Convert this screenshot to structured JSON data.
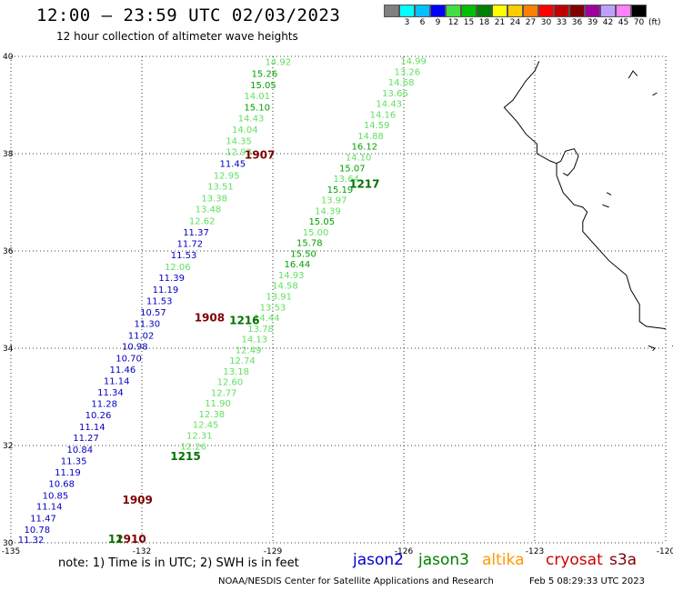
{
  "header": {
    "title": "12:00 – 23:59 UTC 02/03/2023",
    "subtitle": "12 hour collection of altimeter wave heights"
  },
  "colorbar": {
    "colors": [
      "#808080",
      "#00ffff",
      "#00c0ff",
      "#0000ff",
      "#40e040",
      "#00c000",
      "#008000",
      "#ffff00",
      "#ffcc00",
      "#ff8000",
      "#ff0000",
      "#c00000",
      "#800000",
      "#a000a0",
      "#c0a0ff",
      "#ff80ff",
      "#000000"
    ],
    "labels": [
      "",
      "3",
      "6",
      "9",
      "12",
      "15",
      "18",
      "21",
      "24",
      "27",
      "30",
      "33",
      "36",
      "39",
      "42",
      "45",
      "70"
    ],
    "unit": "(ft)"
  },
  "axes": {
    "lat_ticks": [
      "40",
      "38",
      "36",
      "34",
      "32",
      "30"
    ],
    "lon_ticks": [
      "-135",
      "-132",
      "-129",
      "-126",
      "-123",
      "-120"
    ]
  },
  "map": {
    "lon_range": [
      -135,
      -120
    ],
    "lat_range": [
      30,
      40
    ],
    "coastline": [
      [
        -122.9,
        39.9
      ],
      [
        -123.0,
        39.7
      ],
      [
        -123.2,
        39.5
      ],
      [
        -123.5,
        39.1
      ],
      [
        -123.7,
        38.95
      ],
      [
        -123.4,
        38.65
      ],
      [
        -123.2,
        38.4
      ],
      [
        -122.95,
        38.2
      ],
      [
        -122.95,
        38.0
      ],
      [
        -122.65,
        37.85
      ],
      [
        -122.5,
        37.8
      ],
      [
        -122.5,
        37.55
      ],
      [
        -122.35,
        37.2
      ],
      [
        -122.1,
        36.95
      ],
      [
        -121.9,
        36.9
      ],
      [
        -121.8,
        36.8
      ],
      [
        -121.9,
        36.6
      ],
      [
        -121.9,
        36.4
      ],
      [
        -121.6,
        36.1
      ],
      [
        -121.3,
        35.8
      ],
      [
        -120.9,
        35.5
      ],
      [
        -120.8,
        35.2
      ],
      [
        -120.6,
        34.9
      ],
      [
        -120.6,
        34.55
      ],
      [
        -120.45,
        34.45
      ],
      [
        -120.0,
        34.4
      ]
    ],
    "bay": [
      [
        -122.5,
        37.8
      ],
      [
        -122.4,
        37.85
      ],
      [
        -122.3,
        38.05
      ],
      [
        -122.1,
        38.1
      ],
      [
        -122.0,
        37.95
      ],
      [
        -122.1,
        37.7
      ],
      [
        -122.25,
        37.55
      ],
      [
        -122.35,
        37.6
      ]
    ],
    "islands": [
      [
        [
          -120.4,
          34.05
        ],
        [
          -120.25,
          34.0
        ],
        [
          -120.3,
          33.95
        ]
      ],
      [
        [
          -119.85,
          34.05
        ],
        [
          -119.55,
          34.0
        ],
        [
          -119.6,
          33.95
        ]
      ],
      [
        [
          -119.45,
          33.3
        ],
        [
          -119.4,
          33.2
        ]
      ],
      [
        [
          -120.85,
          39.55
        ],
        [
          -120.75,
          39.7
        ],
        [
          -120.65,
          39.6
        ]
      ],
      [
        [
          -120.3,
          39.2
        ],
        [
          -120.2,
          39.25
        ]
      ],
      [
        [
          -121.35,
          37.2
        ],
        [
          -121.25,
          37.15
        ]
      ],
      [
        [
          -121.45,
          36.95
        ],
        [
          -121.3,
          36.9
        ]
      ]
    ]
  },
  "tracks": [
    {
      "passes": [
        {
          "lon": -128.88,
          "lat": 39.82,
          "value": "14.92",
          "color": "#60e060"
        },
        {
          "lon": -129.19,
          "lat": 39.58,
          "value": "15.26",
          "color": "#00a000"
        },
        {
          "lon": -129.22,
          "lat": 39.35,
          "value": "15.05",
          "color": "#00a000"
        },
        {
          "lon": -129.36,
          "lat": 39.12,
          "value": "14.01",
          "color": "#60e060"
        },
        {
          "lon": -129.36,
          "lat": 38.89,
          "value": "15.10",
          "color": "#00a000"
        },
        {
          "lon": -129.5,
          "lat": 38.66,
          "value": "14.43",
          "color": "#60e060"
        },
        {
          "lon": -129.64,
          "lat": 38.43,
          "value": "14.04",
          "color": "#60e060"
        },
        {
          "lon": -129.78,
          "lat": 38.2,
          "value": "14.35",
          "color": "#60e060"
        },
        {
          "lon": -129.78,
          "lat": 37.97,
          "value": "12.93",
          "color": "#60e060"
        },
        {
          "lon": -129.92,
          "lat": 37.73,
          "value": "11.45",
          "color": "#0000c0"
        },
        {
          "lon": -130.06,
          "lat": 37.49,
          "value": "12.95",
          "color": "#60e060"
        },
        {
          "lon": -130.2,
          "lat": 37.26,
          "value": "13.51",
          "color": "#60e060"
        },
        {
          "lon": -130.34,
          "lat": 37.02,
          "value": "13.38",
          "color": "#60e060"
        },
        {
          "lon": -130.48,
          "lat": 36.79,
          "value": "13.48",
          "color": "#60e060"
        },
        {
          "lon": -130.62,
          "lat": 36.55,
          "value": "12.62",
          "color": "#60e060"
        },
        {
          "lon": -130.76,
          "lat": 36.32,
          "value": "11.37",
          "color": "#0000c0"
        },
        {
          "lon": -130.9,
          "lat": 36.08,
          "value": "11.72",
          "color": "#0000c0"
        },
        {
          "lon": -131.04,
          "lat": 35.85,
          "value": "11.53",
          "color": "#0000c0"
        },
        {
          "lon": -131.18,
          "lat": 35.61,
          "value": "12.06",
          "color": "#60e060"
        },
        {
          "lon": -131.32,
          "lat": 35.38,
          "value": "11.39",
          "color": "#0000c0"
        },
        {
          "lon": -131.46,
          "lat": 35.14,
          "value": "11.19",
          "color": "#0000c0"
        },
        {
          "lon": -131.6,
          "lat": 34.91,
          "value": "11.53",
          "color": "#0000c0"
        },
        {
          "lon": -131.74,
          "lat": 34.67,
          "value": "10.57",
          "color": "#0000c0"
        },
        {
          "lon": -131.88,
          "lat": 34.44,
          "value": "11.30",
          "color": "#0000c0"
        },
        {
          "lon": -132.02,
          "lat": 34.2,
          "value": "11.02",
          "color": "#0000c0"
        },
        {
          "lon": -132.16,
          "lat": 33.97,
          "value": "10.98",
          "color": "#0000c0"
        },
        {
          "lon": -132.3,
          "lat": 33.73,
          "value": "10.70",
          "color": "#0000c0"
        },
        {
          "lon": -132.44,
          "lat": 33.5,
          "value": "11.46",
          "color": "#0000c0"
        },
        {
          "lon": -132.58,
          "lat": 33.26,
          "value": "11.14",
          "color": "#0000c0"
        },
        {
          "lon": -132.72,
          "lat": 33.03,
          "value": "11.34",
          "color": "#0000c0"
        },
        {
          "lon": -132.86,
          "lat": 32.79,
          "value": "11.28",
          "color": "#0000c0"
        },
        {
          "lon": -133.0,
          "lat": 32.56,
          "value": "10.26",
          "color": "#0000c0"
        },
        {
          "lon": -133.14,
          "lat": 32.32,
          "value": "11.14",
          "color": "#0000c0"
        },
        {
          "lon": -133.28,
          "lat": 32.09,
          "value": "11.27",
          "color": "#0000c0"
        },
        {
          "lon": -133.42,
          "lat": 31.85,
          "value": "10.84",
          "color": "#0000c0"
        },
        {
          "lon": -133.56,
          "lat": 31.62,
          "value": "11.35",
          "color": "#0000c0"
        },
        {
          "lon": -133.7,
          "lat": 31.38,
          "value": "11.19",
          "color": "#0000c0"
        },
        {
          "lon": -133.84,
          "lat": 31.15,
          "value": "10.68",
          "color": "#0000c0"
        },
        {
          "lon": -133.98,
          "lat": 30.91,
          "value": "10.85",
          "color": "#0000c0"
        },
        {
          "lon": -134.12,
          "lat": 30.68,
          "value": "11.14",
          "color": "#0000c0"
        },
        {
          "lon": -134.26,
          "lat": 30.44,
          "value": "11.47",
          "color": "#0000c0"
        },
        {
          "lon": -134.4,
          "lat": 30.21,
          "value": "10.78",
          "color": "#0000c0"
        },
        {
          "lon": -134.54,
          "lat": 30.0,
          "value": "11.32",
          "color": "#0000c0"
        }
      ]
    },
    {
      "passes": [
        {
          "lon": -125.78,
          "lat": 39.84,
          "value": "14.99",
          "color": "#60e060"
        },
        {
          "lon": -125.92,
          "lat": 39.62,
          "value": "13.26",
          "color": "#60e060"
        },
        {
          "lon": -126.06,
          "lat": 39.4,
          "value": "14.68",
          "color": "#60e060"
        },
        {
          "lon": -126.2,
          "lat": 39.18,
          "value": "13.66",
          "color": "#60e060"
        },
        {
          "lon": -126.34,
          "lat": 38.96,
          "value": "14.43",
          "color": "#60e060"
        },
        {
          "lon": -126.48,
          "lat": 38.74,
          "value": "14.16",
          "color": "#60e060"
        },
        {
          "lon": -126.62,
          "lat": 38.52,
          "value": "14.59",
          "color": "#60e060"
        },
        {
          "lon": -126.76,
          "lat": 38.3,
          "value": "14.88",
          "color": "#60e060"
        },
        {
          "lon": -126.9,
          "lat": 38.08,
          "value": "16.12",
          "color": "#00a000"
        },
        {
          "lon": -127.04,
          "lat": 37.86,
          "value": "14.10",
          "color": "#60e060"
        },
        {
          "lon": -127.18,
          "lat": 37.64,
          "value": "15.07",
          "color": "#00a000"
        },
        {
          "lon": -127.32,
          "lat": 37.42,
          "value": "13.64",
          "color": "#60e060"
        },
        {
          "lon": -127.46,
          "lat": 37.2,
          "value": "15.19",
          "color": "#00a000"
        },
        {
          "lon": -127.6,
          "lat": 36.98,
          "value": "13.97",
          "color": "#60e060"
        },
        {
          "lon": -127.74,
          "lat": 36.76,
          "value": "14.39",
          "color": "#60e060"
        },
        {
          "lon": -127.88,
          "lat": 36.54,
          "value": "15.05",
          "color": "#00a000"
        },
        {
          "lon": -128.02,
          "lat": 36.32,
          "value": "15.00",
          "color": "#60e060"
        },
        {
          "lon": -128.16,
          "lat": 36.1,
          "value": "15.78",
          "color": "#00a000"
        },
        {
          "lon": -128.3,
          "lat": 35.88,
          "value": "15.50",
          "color": "#00a000"
        },
        {
          "lon": -128.44,
          "lat": 35.66,
          "value": "16.44",
          "color": "#00a000"
        },
        {
          "lon": -128.58,
          "lat": 35.44,
          "value": "14.93",
          "color": "#60e060"
        },
        {
          "lon": -128.72,
          "lat": 35.22,
          "value": "14.58",
          "color": "#60e060"
        },
        {
          "lon": -128.86,
          "lat": 35.0,
          "value": "13.91",
          "color": "#60e060"
        },
        {
          "lon": -129.0,
          "lat": 34.78,
          "value": "13.53",
          "color": "#60e060"
        },
        {
          "lon": -129.14,
          "lat": 34.56,
          "value": "14.44",
          "color": "#60e060"
        },
        {
          "lon": -129.28,
          "lat": 34.34,
          "value": "13.78",
          "color": "#60e060"
        },
        {
          "lon": -129.42,
          "lat": 34.12,
          "value": "14.13",
          "color": "#60e060"
        },
        {
          "lon": -129.56,
          "lat": 33.9,
          "value": "12.49",
          "color": "#60e060"
        },
        {
          "lon": -129.7,
          "lat": 33.68,
          "value": "12.74",
          "color": "#60e060"
        },
        {
          "lon": -129.84,
          "lat": 33.46,
          "value": "13.18",
          "color": "#60e060"
        },
        {
          "lon": -129.98,
          "lat": 33.24,
          "value": "12.60",
          "color": "#60e060"
        },
        {
          "lon": -130.12,
          "lat": 33.02,
          "value": "12.77",
          "color": "#60e060"
        },
        {
          "lon": -130.26,
          "lat": 32.8,
          "value": "11.90",
          "color": "#60e060"
        },
        {
          "lon": -130.4,
          "lat": 32.58,
          "value": "12.38",
          "color": "#60e060"
        },
        {
          "lon": -130.54,
          "lat": 32.36,
          "value": "12.45",
          "color": "#60e060"
        },
        {
          "lon": -130.68,
          "lat": 32.14,
          "value": "12.31",
          "color": "#60e060"
        },
        {
          "lon": -130.82,
          "lat": 31.92,
          "value": "12.26",
          "color": "#60e060"
        }
      ]
    }
  ],
  "pass_labels": [
    {
      "lon": -129.3,
      "lat": 37.9,
      "text": "1907",
      "color": "#800000"
    },
    {
      "lon": -126.9,
      "lat": 37.3,
      "text": "1217",
      "color": "#007000"
    },
    {
      "lon": -130.45,
      "lat": 34.55,
      "text": "1908",
      "color": "#800000"
    },
    {
      "lon": -129.65,
      "lat": 34.5,
      "text": "1216",
      "color": "#007000"
    },
    {
      "lon": -131.0,
      "lat": 31.7,
      "text": "1215",
      "color": "#007000"
    },
    {
      "lon": -132.1,
      "lat": 30.8,
      "text": "1909",
      "color": "#800000"
    },
    {
      "lon": -132.25,
      "lat": 30.0,
      "text": "1910",
      "color": "#800000"
    },
    {
      "lon": -132.6,
      "lat": 30.0,
      "text": "12",
      "color": "#007000"
    }
  ],
  "footer": {
    "note": "note: 1) Time is in UTC; 2) SWH is in feet",
    "satellites": [
      {
        "name": "jason2",
        "color": "#0000cc"
      },
      {
        "name": "jason3",
        "color": "#008000"
      },
      {
        "name": "altika",
        "color": "#ff9900"
      },
      {
        "name": "cryosat",
        "color": "#cc0000"
      },
      {
        "name": "s3a",
        "color": "#800000"
      }
    ],
    "credit": "NOAA/NESDIS Center for Satellite Applications and Research",
    "timestamp": "Feb  5 08:29:33 UTC 2023"
  }
}
